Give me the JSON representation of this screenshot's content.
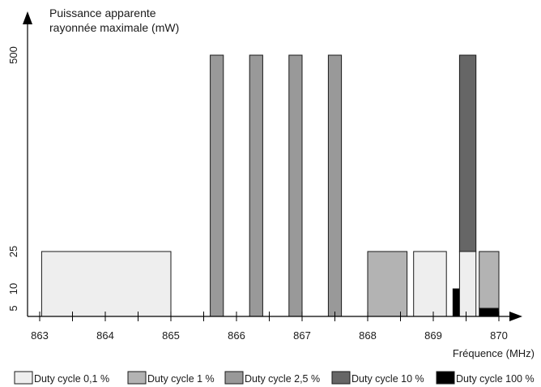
{
  "chart_data": {
    "type": "bar",
    "ylabel_line1": "Puissance apparente",
    "ylabel_line2": "rayonnée maximale (mW)",
    "xlabel": "Fréquence (MHz)",
    "x_ticks": [
      "863",
      "864",
      "865",
      "866",
      "867",
      "868",
      "869",
      "870"
    ],
    "y_ticks": [
      "5",
      "10",
      "25",
      "500"
    ],
    "y_scale": "non-linear",
    "colors": {
      "duty_0_1": "#eeeeee",
      "duty_1": "#b3b3b3",
      "duty_2_5": "#999999",
      "duty_10": "#666666",
      "duty_100": "#000000"
    },
    "legend": [
      {
        "key": "duty_0_1",
        "label": "Duty cycle 0,1 %"
      },
      {
        "key": "duty_1",
        "label": "Duty cycle 1 %"
      },
      {
        "key": "duty_2_5",
        "label": "Duty cycle 2,5 %"
      },
      {
        "key": "duty_10",
        "label": "Duty cycle 10 %"
      },
      {
        "key": "duty_100",
        "label": "Duty cycle 100 %"
      }
    ],
    "bands": [
      {
        "x0": 863.03,
        "x1": 865.0,
        "y": 25,
        "key": "duty_0_1"
      },
      {
        "x0": 865.6,
        "x1": 865.8,
        "y": 500,
        "key": "duty_2_5"
      },
      {
        "x0": 866.2,
        "x1": 866.4,
        "y": 500,
        "key": "duty_2_5"
      },
      {
        "x0": 866.8,
        "x1": 867.0,
        "y": 500,
        "key": "duty_2_5"
      },
      {
        "x0": 867.4,
        "x1": 867.6,
        "y": 500,
        "key": "duty_2_5"
      },
      {
        "x0": 868.0,
        "x1": 868.6,
        "y": 25,
        "key": "duty_1"
      },
      {
        "x0": 868.7,
        "x1": 869.2,
        "y": 25,
        "key": "duty_0_1"
      },
      {
        "x0": 869.3,
        "x1": 869.4,
        "y": 10,
        "key": "duty_100"
      },
      {
        "x0": 869.4,
        "x1": 869.65,
        "y_from": 0,
        "y": 25,
        "key": "duty_0_1"
      },
      {
        "x0": 869.4,
        "x1": 869.65,
        "y_from": 25,
        "y": 500,
        "key": "duty_10"
      },
      {
        "x0": 869.7,
        "x1": 870.0,
        "y_from": 5,
        "y": 25,
        "key": "duty_1"
      },
      {
        "x0": 869.7,
        "x1": 870.0,
        "y_from": 0,
        "y": 5,
        "key": "duty_100"
      }
    ]
  }
}
